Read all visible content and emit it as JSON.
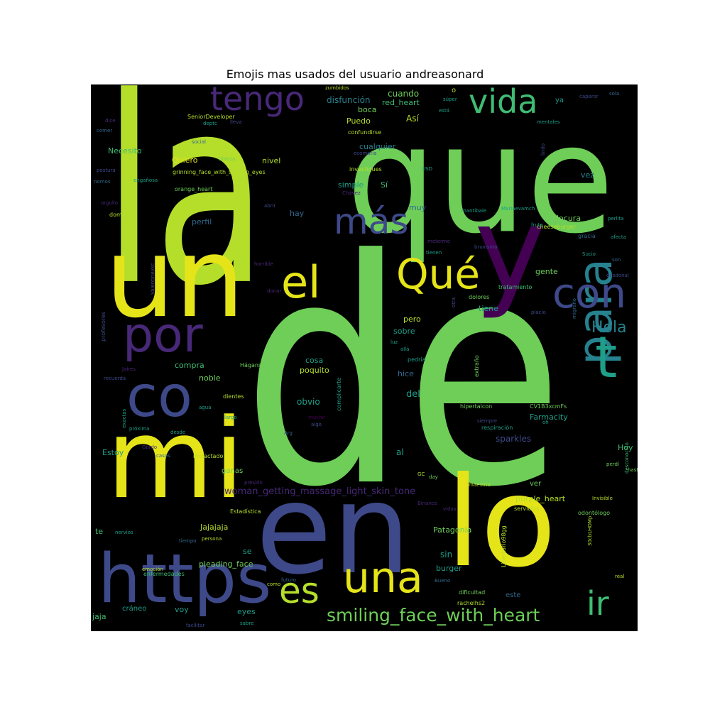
{
  "title": "Emojis mas usados del usuario andreasonard",
  "colors": {
    "background": "#000000",
    "lime": "#b5de2b",
    "yellow": "#e5e419",
    "green": "#6ece58",
    "green2": "#3fbc73",
    "teal": "#1f9e89",
    "cyan": "#26828e",
    "blue": "#31688e",
    "indigo": "#3e4989",
    "purple": "#482878",
    "violet": "#440154"
  },
  "words": [
    {
      "text": "la",
      "color": "lime",
      "weight": 100
    },
    {
      "text": "de",
      "color": "green",
      "weight": 98
    },
    {
      "text": "que",
      "color": "green",
      "weight": 78
    },
    {
      "text": "un",
      "color": "yellow",
      "weight": 62
    },
    {
      "text": "en",
      "color": "indigo",
      "weight": 60
    },
    {
      "text": "mi",
      "color": "yellow",
      "weight": 58
    },
    {
      "text": "lo",
      "color": "yellow",
      "weight": 55
    },
    {
      "text": "y",
      "color": "violet",
      "weight": 52
    },
    {
      "text": "https",
      "color": "indigo",
      "weight": 44
    },
    {
      "text": "co",
      "color": "indigo",
      "weight": 40
    },
    {
      "text": "una",
      "color": "yellow",
      "weight": 36
    },
    {
      "text": "para",
      "color": "cyan",
      "weight": 33
    },
    {
      "text": "t",
      "color": "teal",
      "weight": 31
    },
    {
      "text": "por",
      "color": "purple",
      "weight": 29
    },
    {
      "text": "el",
      "color": "yellow",
      "weight": 27
    },
    {
      "text": "Qué",
      "color": "yellow",
      "weight": 26
    },
    {
      "text": "con",
      "color": "indigo",
      "weight": 25
    },
    {
      "text": "es",
      "color": "lime",
      "weight": 24
    },
    {
      "text": "tengo",
      "color": "purple",
      "weight": 23
    },
    {
      "text": "vida",
      "color": "green2",
      "weight": 22
    },
    {
      "text": "más",
      "color": "indigo",
      "weight": 21
    },
    {
      "text": "ir",
      "color": "green2",
      "weight": 20
    },
    {
      "text": "smiling_face_with_heart",
      "color": "green",
      "weight": 17
    },
    {
      "text": "Hola",
      "color": "cyan",
      "weight": 15
    },
    {
      "text": "woman_getting_massage_light_skin_tone",
      "color": "purple",
      "weight": 11
    },
    {
      "text": "cuando",
      "color": "green",
      "weight": 10
    },
    {
      "text": "disfunción",
      "color": "cyan",
      "weight": 9
    },
    {
      "text": "red_heart",
      "color": "green2",
      "weight": 9
    },
    {
      "text": "boca",
      "color": "green",
      "weight": 9
    },
    {
      "text": "Puedo",
      "color": "lime",
      "weight": 9
    },
    {
      "text": "Así",
      "color": "lime",
      "weight": 9
    },
    {
      "text": "Necesito",
      "color": "green2",
      "weight": 8
    },
    {
      "text": "Quiero",
      "color": "yellow",
      "weight": 8
    },
    {
      "text": "nivel",
      "color": "lime",
      "weight": 8
    },
    {
      "text": "cualquier",
      "color": "cyan",
      "weight": 8
    },
    {
      "text": "simple",
      "color": "teal",
      "weight": 8
    },
    {
      "text": "Sí",
      "color": "green2",
      "weight": 8
    },
    {
      "text": "muy",
      "color": "blue",
      "weight": 8
    },
    {
      "text": "hay",
      "color": "blue",
      "weight": 8
    },
    {
      "text": "perfil",
      "color": "blue",
      "weight": 8
    },
    {
      "text": "locura",
      "color": "green",
      "weight": 8
    },
    {
      "text": "gente",
      "color": "green",
      "weight": 8
    },
    {
      "text": "vez",
      "color": "cyan",
      "weight": 8
    },
    {
      "text": "pero",
      "color": "lime",
      "weight": 8
    },
    {
      "text": "sobre",
      "color": "teal",
      "weight": 8
    },
    {
      "text": "tiene",
      "color": "teal",
      "weight": 8
    },
    {
      "text": "cosa",
      "color": "teal",
      "weight": 8
    },
    {
      "text": "poquito",
      "color": "lime",
      "weight": 8
    },
    {
      "text": "compra",
      "color": "green2",
      "weight": 8
    },
    {
      "text": "noble",
      "color": "green",
      "weight": 8
    },
    {
      "text": "obvio",
      "color": "teal",
      "weight": 8
    },
    {
      "text": "del",
      "color": "teal",
      "weight": 8
    },
    {
      "text": "hice",
      "color": "blue",
      "weight": 7
    },
    {
      "text": "purple_heart",
      "color": "lime",
      "weight": 8
    },
    {
      "text": "Farmacity",
      "color": "teal",
      "weight": 8
    },
    {
      "text": "sparkles",
      "color": "indigo",
      "weight": 8
    },
    {
      "text": "Hoy",
      "color": "green2",
      "weight": 8
    },
    {
      "text": "Estoy",
      "color": "teal",
      "weight": 8
    },
    {
      "text": "ganas",
      "color": "green",
      "weight": 7
    },
    {
      "text": "al",
      "color": "teal",
      "weight": 8
    },
    {
      "text": "Jajajaja",
      "color": "lime",
      "weight": 8
    },
    {
      "text": "Patagonia",
      "color": "green",
      "weight": 8
    },
    {
      "text": "sin",
      "color": "teal",
      "weight": 8
    },
    {
      "text": "burger",
      "color": "teal",
      "weight": 8
    },
    {
      "text": "pleading_face",
      "color": "green",
      "weight": 8
    },
    {
      "text": "se",
      "color": "teal",
      "weight": 8
    },
    {
      "text": "te",
      "color": "green2",
      "weight": 8
    },
    {
      "text": "jaja",
      "color": "green2",
      "weight": 8
    },
    {
      "text": "voy",
      "color": "teal",
      "weight": 8
    },
    {
      "text": "eyes",
      "color": "teal",
      "weight": 8
    },
    {
      "text": "ver",
      "color": "green",
      "weight": 7
    },
    {
      "text": "SeniorDeveloper",
      "color": "lime",
      "weight": 6
    },
    {
      "text": "grinning_face_with_smiling_eyes",
      "color": "lime",
      "weight": 6
    },
    {
      "text": "orange_heart",
      "color": "green",
      "weight": 6
    },
    {
      "text": "domingos",
      "color": "lime",
      "weight": 6
    },
    {
      "text": "hipertalcon",
      "color": "green",
      "weight": 6
    },
    {
      "text": "CV1B3xcmFs",
      "color": "green",
      "weight": 6
    },
    {
      "text": "cheeseburger",
      "color": "lime",
      "weight": 6
    },
    {
      "text": "confundirse",
      "color": "lime",
      "weight": 6
    },
    {
      "text": "investigues",
      "color": "lime",
      "weight": 6
    },
    {
      "text": "tratamiento",
      "color": "green2",
      "weight": 6
    },
    {
      "text": "dolores",
      "color": "green",
      "weight": 6
    },
    {
      "text": "respiración",
      "color": "teal",
      "weight": 6
    },
    {
      "text": "complicarte",
      "color": "teal",
      "weight": 6
    },
    {
      "text": "Háganse",
      "color": "green",
      "weight": 6
    },
    {
      "text": "dientes",
      "color": "lime",
      "weight": 6
    },
    {
      "text": "impactado",
      "color": "lime",
      "weight": 6
    },
    {
      "text": "profesores",
      "color": "indigo",
      "weight": 6
    },
    {
      "text": "enfermedades",
      "color": "green2",
      "weight": 6
    },
    {
      "text": "servicios",
      "color": "lime",
      "weight": 6
    },
    {
      "text": "odontólogo",
      "color": "green",
      "weight": 6
    },
    {
      "text": "Libertario98gg",
      "color": "lime",
      "weight": 6
    },
    {
      "text": "dificultad",
      "color": "green",
      "weight": 6
    },
    {
      "text": "rachelhs2",
      "color": "lime",
      "weight": 6
    },
    {
      "text": "Estadística",
      "color": "lime",
      "weight": 6
    },
    {
      "text": "extraño",
      "color": "green",
      "weight": 6
    },
    {
      "text": "pedría",
      "color": "teal",
      "weight": 5
    },
    {
      "text": "mentales",
      "color": "teal",
      "weight": 5
    },
    {
      "text": "lindo",
      "color": "indigo",
      "weight": 5
    },
    {
      "text": "caperor",
      "color": "indigo",
      "weight": 5
    },
    {
      "text": "sola",
      "color": "blue",
      "weight": 5
    },
    {
      "text": "zumbidos",
      "color": "lime",
      "weight": 5
    },
    {
      "text": "súper",
      "color": "teal",
      "weight": 5
    },
    {
      "text": "está",
      "color": "teal",
      "weight": 5
    },
    {
      "text": "deptc",
      "color": "teal",
      "weight": 5
    },
    {
      "text": "lleva",
      "color": "indigo",
      "weight": 5
    },
    {
      "text": "social",
      "color": "blue",
      "weight": 5
    },
    {
      "text": "tibieza",
      "color": "green",
      "weight": 5
    },
    {
      "text": "ecomotia",
      "color": "indigo",
      "weight": 5
    },
    {
      "text": "USD",
      "color": "teal",
      "weight": 5
    },
    {
      "text": "postura",
      "color": "indigo",
      "weight": 5
    },
    {
      "text": "nomos",
      "color": "blue",
      "weight": 5
    },
    {
      "text": "engañosa",
      "color": "teal",
      "weight": 5
    },
    {
      "text": "orgullo",
      "color": "purple",
      "weight": 5
    },
    {
      "text": "abrir",
      "color": "indigo",
      "weight": 5
    },
    {
      "text": "Chávez",
      "color": "purple",
      "weight": 5
    },
    {
      "text": "mantibale",
      "color": "teal",
      "weight": 5
    },
    {
      "text": "Mariaevamch",
      "color": "teal",
      "weight": 5
    },
    {
      "text": "fruta",
      "color": "teal",
      "weight": 5
    },
    {
      "text": "perlita",
      "color": "teal",
      "weight": 5
    },
    {
      "text": "gracia",
      "color": "blue",
      "weight": 5
    },
    {
      "text": "afecta",
      "color": "teal",
      "weight": 5
    },
    {
      "text": "meterme",
      "color": "purple",
      "weight": 5
    },
    {
      "text": "bruxismo",
      "color": "indigo",
      "weight": 5
    },
    {
      "text": "tienen",
      "color": "teal",
      "weight": 5
    },
    {
      "text": "Sucio",
      "color": "teal",
      "weight": 5
    },
    {
      "text": "son",
      "color": "blue",
      "weight": 5
    },
    {
      "text": "Valentinevkc",
      "color": "indigo",
      "weight": 5
    },
    {
      "text": "horrible",
      "color": "purple",
      "weight": 5
    },
    {
      "text": "desdonal",
      "color": "indigo",
      "weight": 5
    },
    {
      "text": "donar",
      "color": "purple",
      "weight": 5
    },
    {
      "text": "placio",
      "color": "indigo",
      "weight": 5
    },
    {
      "text": "otra",
      "color": "indigo",
      "weight": 5
    },
    {
      "text": "migraño",
      "color": "blue",
      "weight": 5
    },
    {
      "text": "luz",
      "color": "teal",
      "weight": 5
    },
    {
      "text": "allá",
      "color": "teal",
      "weight": 5
    },
    {
      "text": "Jaires",
      "color": "purple",
      "weight": 5
    },
    {
      "text": "recuerda",
      "color": "indigo",
      "weight": 5
    },
    {
      "text": "agua",
      "color": "teal",
      "weight": 5
    },
    {
      "text": "largo",
      "color": "teal",
      "weight": 5
    },
    {
      "text": "mucho",
      "color": "violet",
      "weight": 5
    },
    {
      "text": "algo",
      "color": "indigo",
      "weight": 5
    },
    {
      "text": "siempre",
      "color": "indigo",
      "weight": 5
    },
    {
      "text": "oh",
      "color": "teal",
      "weight": 5
    },
    {
      "text": "exactas",
      "color": "teal",
      "weight": 5
    },
    {
      "text": "próxima",
      "color": "teal",
      "weight": 5
    },
    {
      "text": "desde",
      "color": "teal",
      "weight": 5
    },
    {
      "text": "Gordo",
      "color": "purple",
      "weight": 5
    },
    {
      "text": "casos",
      "color": "blue",
      "weight": 5
    },
    {
      "text": "Arg",
      "color": "blue",
      "weight": 5
    },
    {
      "text": "presión",
      "color": "purple",
      "weight": 5
    },
    {
      "text": "GC",
      "color": "lime",
      "weight": 5
    },
    {
      "text": "day",
      "color": "green",
      "weight": 5
    },
    {
      "text": "maestría",
      "color": "lime",
      "weight": 5
    },
    {
      "text": "perdí",
      "color": "green",
      "weight": 5
    },
    {
      "text": "hasta",
      "color": "green",
      "weight": 5
    },
    {
      "text": "desconocido",
      "color": "green2",
      "weight": 5
    },
    {
      "text": "Binance",
      "color": "purple",
      "weight": 5
    },
    {
      "text": "vidas",
      "color": "purple",
      "weight": 5
    },
    {
      "text": "Invisible",
      "color": "lime",
      "weight": 5
    },
    {
      "text": "nervios",
      "color": "teal",
      "weight": 5
    },
    {
      "text": "tiempo",
      "color": "blue",
      "weight": 5
    },
    {
      "text": "persona",
      "color": "lime",
      "weight": 5
    },
    {
      "text": "emoción",
      "color": "lime",
      "weight": 5
    },
    {
      "text": "futuro",
      "color": "blue",
      "weight": 5
    },
    {
      "text": "Bueno",
      "color": "blue",
      "weight": 5
    },
    {
      "text": "como",
      "color": "lime",
      "weight": 5
    },
    {
      "text": "cráneo",
      "color": "teal",
      "weight": 5
    },
    {
      "text": "este",
      "color": "blue",
      "weight": 5
    },
    {
      "text": "facilitar",
      "color": "indigo",
      "weight": 5
    },
    {
      "text": "sabre",
      "color": "teal",
      "weight": 5
    },
    {
      "text": "real",
      "color": "lime",
      "weight": 5
    },
    {
      "text": "30cbLHOMp",
      "color": "lime",
      "weight": 5
    },
    {
      "text": "dice",
      "color": "purple",
      "weight": 5
    },
    {
      "text": "comer",
      "color": "blue",
      "weight": 5
    },
    {
      "text": "o",
      "color": "lime",
      "weight": 5
    },
    {
      "text": "ya",
      "color": "teal",
      "weight": 5
    }
  ]
}
